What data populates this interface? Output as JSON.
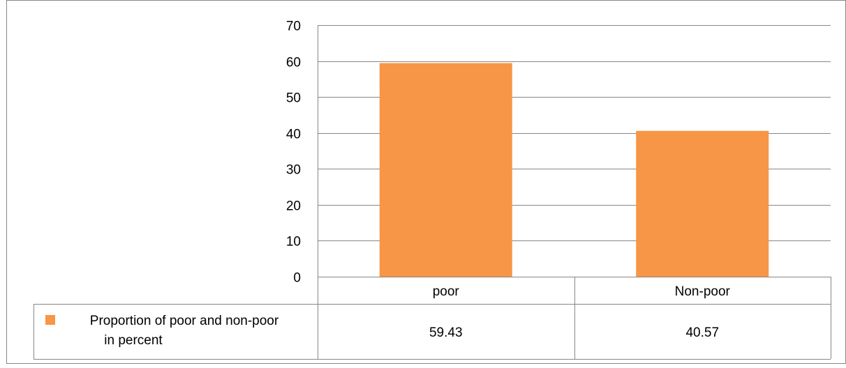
{
  "chart_data": {
    "type": "bar",
    "categories": [
      "poor",
      "Non-poor"
    ],
    "series": [
      {
        "name": "Proportion of poor and non-poor in percent",
        "values": [
          59.43,
          40.57
        ],
        "color": "#F79646"
      }
    ],
    "value_labels": [
      "59.43",
      "40.57"
    ],
    "ylim": [
      0,
      70
    ],
    "yticks": [
      "0",
      "10",
      "20",
      "30",
      "40",
      "50",
      "60",
      "70"
    ],
    "grid": "horizontal",
    "data_table": true,
    "legend_position": "in data table, left"
  },
  "colors": {
    "bar": "#F79646",
    "grid": "#868686",
    "frame": "#868686",
    "text": "#000000"
  }
}
